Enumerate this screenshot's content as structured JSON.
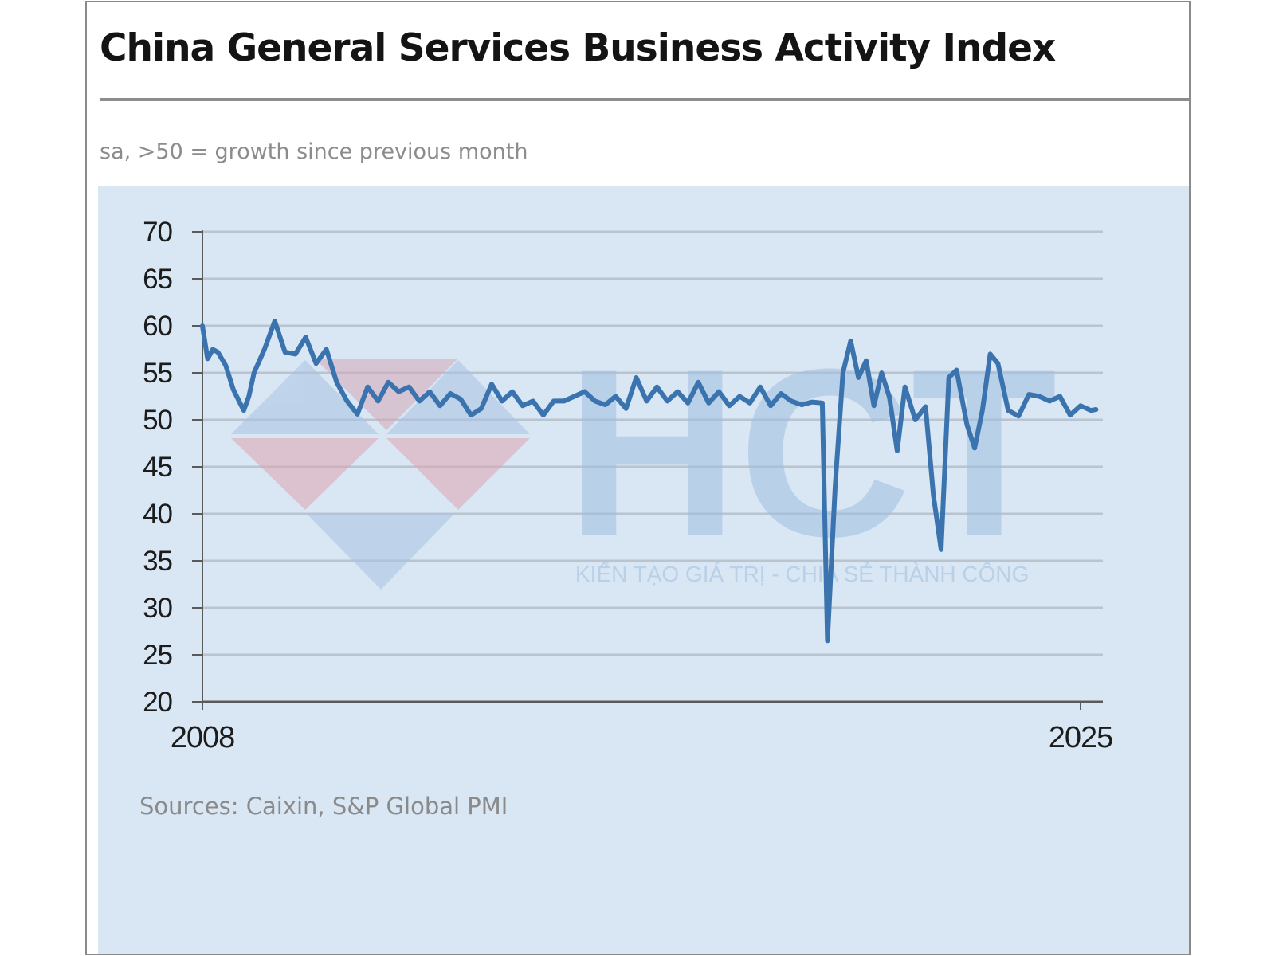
{
  "chart_data": {
    "type": "line",
    "title": "China General Services Business Activity Index",
    "subtitle": "sa, >50 = growth since previous month",
    "source": "Sources: Caixin, S&P Global PMI",
    "ylim": [
      20,
      70
    ],
    "yticks": [
      70,
      65,
      60,
      55,
      50,
      45,
      40,
      35,
      30,
      25,
      20
    ],
    "xlim": [
      2008,
      2025.4
    ],
    "xticks": [
      2008,
      2025
    ],
    "grid": true,
    "legend": "none",
    "series": [
      {
        "color": "#3a73ad",
        "x": [
          2008.0,
          2008.1,
          2008.2,
          2008.3,
          2008.45,
          2008.6,
          2008.8,
          2008.9,
          2009.0,
          2009.2,
          2009.4,
          2009.6,
          2009.8,
          2010.0,
          2010.2,
          2010.4,
          2010.6,
          2010.8,
          2011.0,
          2011.2,
          2011.4,
          2011.6,
          2011.8,
          2012.0,
          2012.2,
          2012.4,
          2012.6,
          2012.8,
          2013.0,
          2013.2,
          2013.4,
          2013.6,
          2013.8,
          2014.0,
          2014.2,
          2014.4,
          2014.6,
          2014.8,
          2015.0,
          2015.2,
          2015.4,
          2015.6,
          2015.8,
          2016.0,
          2016.2,
          2016.4,
          2016.6,
          2016.8,
          2017.0,
          2017.2,
          2017.4,
          2017.6,
          2017.8,
          2018.0,
          2018.2,
          2018.4,
          2018.6,
          2018.8,
          2019.0,
          2019.2,
          2019.4,
          2019.6,
          2019.8,
          2020.0,
          2020.1,
          2020.25,
          2020.4,
          2020.55,
          2020.7,
          2020.85,
          2021.0,
          2021.15,
          2021.3,
          2021.45,
          2021.6,
          2021.8,
          2022.0,
          2022.15,
          2022.3,
          2022.45,
          2022.6,
          2022.8,
          2022.95,
          2023.1,
          2023.25,
          2023.4,
          2023.6,
          2023.8,
          2024.0,
          2024.2,
          2024.4,
          2024.6,
          2024.8,
          2025.0,
          2025.2,
          2025.3
        ],
        "y": [
          60.0,
          56.5,
          57.5,
          57.2,
          55.8,
          53.2,
          51.0,
          52.5,
          55.0,
          57.5,
          60.5,
          57.2,
          57.0,
          58.8,
          56.0,
          57.5,
          54.0,
          52.0,
          50.6,
          53.5,
          52.0,
          54.0,
          53.0,
          53.5,
          52.0,
          53.0,
          51.5,
          52.8,
          52.2,
          50.5,
          51.2,
          53.8,
          52.0,
          53.0,
          51.5,
          52.0,
          50.5,
          52.0,
          52.0,
          52.5,
          53.0,
          52.0,
          51.6,
          52.5,
          51.2,
          54.5,
          52.0,
          53.5,
          52.0,
          53.0,
          51.8,
          54.0,
          51.8,
          53.0,
          51.5,
          52.5,
          51.8,
          53.5,
          51.5,
          52.8,
          52.0,
          51.6,
          51.9,
          51.8,
          26.5,
          43.0,
          55.0,
          58.4,
          54.5,
          56.3,
          51.5,
          55.0,
          52.4,
          46.7,
          53.5,
          50.0,
          51.4,
          42.0,
          36.2,
          54.5,
          55.3,
          49.5,
          47.0,
          51.0,
          57.0,
          56.0,
          51.0,
          50.4,
          52.7,
          52.5,
          52.0,
          52.5,
          50.5,
          51.5,
          51.0,
          51.1
        ]
      }
    ]
  },
  "watermark": {
    "brand": "HCT",
    "tagline": "KIẾN TẠO GIÁ TRỊ - CHIA SẺ THÀNH CÔNG"
  }
}
